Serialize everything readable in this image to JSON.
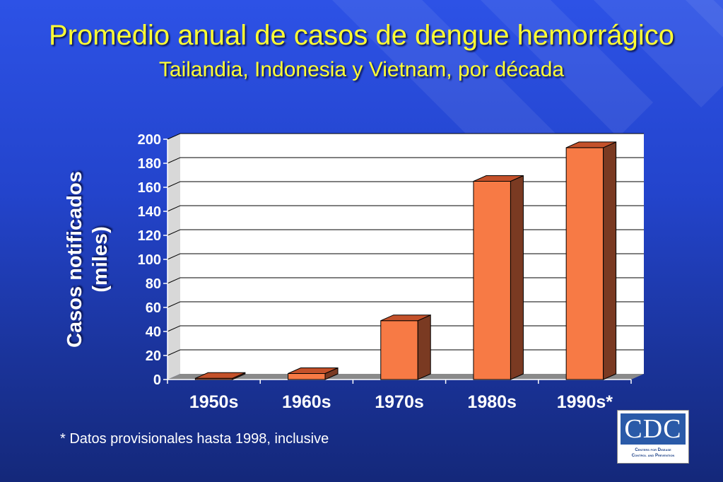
{
  "slide": {
    "title": "Promedio anual de casos de dengue hemorrágico",
    "subtitle": "Tailandia, Indonesia y Vietnam, por década",
    "footnote": "* Datos provisionales hasta 1998, inclusive"
  },
  "logo": {
    "letters": "CDC",
    "line1": "Centers for Disease",
    "line2": "Control and Prevention"
  },
  "colors": {
    "background": "#2344cc",
    "title": "#ffff33",
    "bar_front": "#f77a45",
    "bar_side": "#7a3a22",
    "bar_top": "#c4512a",
    "plot_area": "#ffffff"
  },
  "chart_data": {
    "type": "bar",
    "categories": [
      "1950s",
      "1960s",
      "1970s",
      "1980s",
      "1990s*"
    ],
    "values": [
      1,
      5,
      49,
      165,
      193
    ],
    "xlabel": "",
    "ylabel": "Casos notificados (miles)",
    "ylim": [
      0,
      200
    ],
    "yticks": [
      0,
      20,
      40,
      60,
      80,
      100,
      120,
      140,
      160,
      180,
      200
    ],
    "grid": true,
    "legend": "none",
    "style": "3d"
  }
}
